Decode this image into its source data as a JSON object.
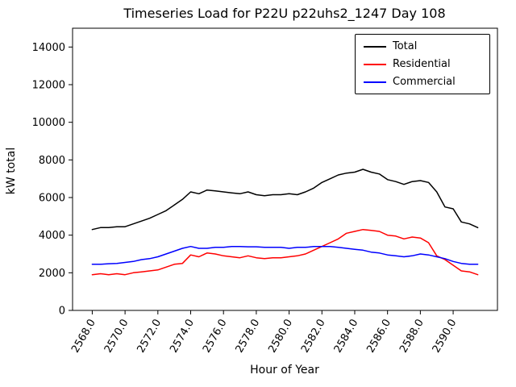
{
  "chart_data": {
    "type": "line",
    "title": "Timeseries Load for P22U p22uhs2_1247  Day 108",
    "xlabel": "Hour of Year",
    "ylabel": "kW total",
    "xlim": [
      2566.8,
      2592.7
    ],
    "ylim": [
      0,
      15000
    ],
    "grid": false,
    "legend_position": "upper right",
    "x_ticks": [
      2568,
      2570,
      2572,
      2574,
      2576,
      2578,
      2580,
      2582,
      2584,
      2586,
      2588,
      2590
    ],
    "x_tick_labels": [
      "2568.0",
      "2570.0",
      "2572.0",
      "2574.0",
      "2576.0",
      "2578.0",
      "2580.0",
      "2582.0",
      "2584.0",
      "2586.0",
      "2588.0",
      "2590.0"
    ],
    "y_ticks": [
      0,
      2000,
      4000,
      6000,
      8000,
      10000,
      12000,
      14000
    ],
    "x": [
      2568.0,
      2568.5,
      2569.0,
      2569.5,
      2570.0,
      2570.5,
      2571.0,
      2571.5,
      2572.0,
      2572.5,
      2573.0,
      2573.5,
      2574.0,
      2574.5,
      2575.0,
      2575.5,
      2576.0,
      2576.5,
      2577.0,
      2577.5,
      2578.0,
      2578.5,
      2579.0,
      2579.5,
      2580.0,
      2580.5,
      2581.0,
      2581.5,
      2582.0,
      2582.5,
      2583.0,
      2583.5,
      2584.0,
      2584.5,
      2585.0,
      2585.5,
      2586.0,
      2586.5,
      2587.0,
      2587.5,
      2588.0,
      2588.5,
      2589.0,
      2589.5,
      2590.0,
      2590.5,
      2591.0,
      2591.5
    ],
    "series": [
      {
        "name": "Total",
        "color": "#000000",
        "values": [
          4300,
          4400,
          4400,
          4450,
          4450,
          4600,
          4750,
          4900,
          5100,
          5300,
          5600,
          5900,
          6300,
          6200,
          6400,
          6350,
          6300,
          6250,
          6200,
          6300,
          6150,
          6100,
          6150,
          6150,
          6200,
          6150,
          6300,
          6500,
          6800,
          7000,
          7200,
          7300,
          7350,
          7500,
          7350,
          7250,
          6950,
          6850,
          6700,
          6850,
          6900,
          6800,
          6300,
          5500,
          5400,
          4700,
          4600,
          4400
        ]
      },
      {
        "name": "Residential",
        "color": "#ff0000",
        "values": [
          1900,
          1950,
          1900,
          1950,
          1900,
          2000,
          2050,
          2100,
          2150,
          2300,
          2450,
          2500,
          2950,
          2850,
          3050,
          3000,
          2900,
          2850,
          2800,
          2900,
          2800,
          2750,
          2800,
          2800,
          2850,
          2900,
          3000,
          3200,
          3400,
          3600,
          3800,
          4100,
          4200,
          4300,
          4250,
          4200,
          4000,
          3950,
          3800,
          3900,
          3850,
          3600,
          2900,
          2700,
          2400,
          2100,
          2050,
          1900
        ]
      },
      {
        "name": "Commercial",
        "color": "#0000ff",
        "values": [
          2450,
          2450,
          2480,
          2500,
          2550,
          2600,
          2700,
          2750,
          2850,
          3000,
          3150,
          3300,
          3400,
          3300,
          3300,
          3350,
          3350,
          3400,
          3400,
          3380,
          3380,
          3350,
          3350,
          3350,
          3300,
          3350,
          3350,
          3400,
          3400,
          3400,
          3350,
          3300,
          3250,
          3200,
          3100,
          3050,
          2950,
          2900,
          2850,
          2900,
          3000,
          2950,
          2850,
          2750,
          2600,
          2500,
          2450,
          2450
        ]
      }
    ]
  }
}
